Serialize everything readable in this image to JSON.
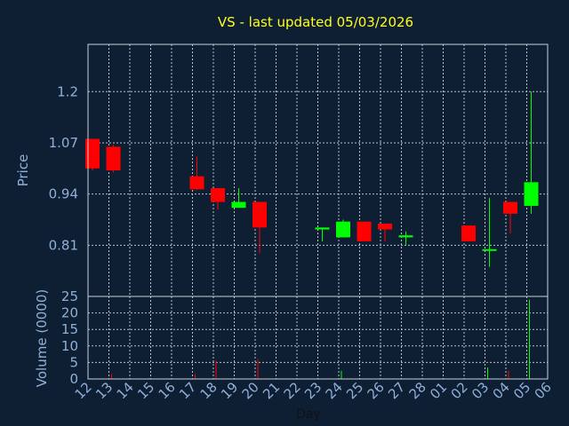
{
  "chart_data": {
    "type": "candlestick",
    "title": "VS - last updated 05/03/2026",
    "xlabel": "Day",
    "ylabel_price": "Price",
    "ylabel_volume": "Volume (0000)",
    "grid": true,
    "price_ylim": [
      0.68,
      1.32
    ],
    "price_yticks": [
      "1.2",
      "1.07",
      "0.94",
      "0.81"
    ],
    "volume_ylim": [
      0,
      25
    ],
    "volume_yticks": [
      "0",
      "5",
      "10",
      "15",
      "20",
      "25"
    ],
    "x_ticks": [
      "12",
      "13",
      "14",
      "15",
      "16",
      "17",
      "18",
      "19",
      "20",
      "21",
      "22",
      "23",
      "24",
      "25",
      "26",
      "27",
      "28",
      "01",
      "02",
      "03",
      "04",
      "05",
      "06"
    ],
    "colors": {
      "up": "#00ff00",
      "down": "#ff0000",
      "background": "#0f1f33",
      "title": "#ffff1e",
      "axis_text": "#8fb0d8"
    },
    "candles": [
      {
        "x": "12",
        "open": 1.08,
        "high": 1.08,
        "low": 1.0,
        "close": 1.005,
        "volume": 0
      },
      {
        "x": "13",
        "open": 1.06,
        "high": 1.065,
        "low": 0.995,
        "close": 1.0,
        "volume": 1.5
      },
      {
        "x": "17",
        "open": 0.985,
        "high": 1.035,
        "low": 0.95,
        "close": 0.952,
        "volume": 1.5
      },
      {
        "x": "18",
        "open": 0.955,
        "high": 0.955,
        "low": 0.9,
        "close": 0.92,
        "volume": 5.5
      },
      {
        "x": "19",
        "open": 0.905,
        "high": 0.955,
        "low": 0.905,
        "close": 0.92,
        "volume": 0
      },
      {
        "x": "20",
        "open": 0.92,
        "high": 0.92,
        "low": 0.79,
        "close": 0.855,
        "volume": 6
      },
      {
        "x": "23",
        "open": 0.85,
        "high": 0.855,
        "low": 0.82,
        "close": 0.855,
        "volume": 0
      },
      {
        "x": "24",
        "open": 0.83,
        "high": 0.875,
        "low": 0.83,
        "close": 0.87,
        "volume": 2.5
      },
      {
        "x": "25",
        "open": 0.87,
        "high": 0.87,
        "low": 0.82,
        "close": 0.82,
        "volume": 0
      },
      {
        "x": "26",
        "open": 0.865,
        "high": 0.865,
        "low": 0.82,
        "close": 0.85,
        "volume": 0
      },
      {
        "x": "27",
        "open": 0.83,
        "high": 0.845,
        "low": 0.81,
        "close": 0.835,
        "volume": 0
      },
      {
        "x": "02",
        "open": 0.86,
        "high": 0.86,
        "low": 0.82,
        "close": 0.82,
        "volume": 0
      },
      {
        "x": "03",
        "open": 0.8,
        "high": 0.93,
        "low": 0.755,
        "close": 0.8,
        "volume": 3.5
      },
      {
        "x": "04",
        "open": 0.92,
        "high": 0.92,
        "low": 0.84,
        "close": 0.89,
        "volume": 2.5
      },
      {
        "x": "05",
        "open": 0.91,
        "high": 1.2,
        "low": 0.89,
        "close": 0.97,
        "volume": 24
      }
    ]
  }
}
